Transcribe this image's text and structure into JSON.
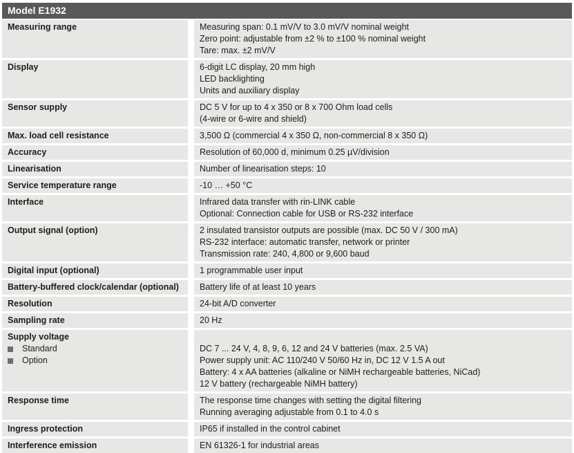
{
  "header": {
    "title": "Model E1932"
  },
  "colors": {
    "header_bg": "#59595b",
    "row_bg": "#e7e7e5",
    "text": "#1d1d1b",
    "bullet": "#6e6e70"
  },
  "table": {
    "rows": [
      {
        "label": "Measuring range",
        "values": [
          "Measuring span: 0.1 mV/V to 3.0 mV/V nominal weight",
          "Zero point: adjustable from ±2 % to ±100 % nominal weight",
          "Tare: max. ±2 mV/V"
        ]
      },
      {
        "label": "Display",
        "values": [
          "6-digit LC display, 20 mm high",
          "LED backlighting",
          "Units and auxiliary display"
        ]
      },
      {
        "label": "Sensor supply",
        "values": [
          "DC 5 V for up to 4 x 350 or 8 x 700 Ohm load cells",
          "(4-wire or 6-wire and shield)"
        ]
      },
      {
        "label": "Max. load cell resistance",
        "values": [
          "3,500 Ω (commercial 4 x 350 Ω, non-commercial 8 x 350 Ω)"
        ]
      },
      {
        "label": "Accuracy",
        "values": [
          "Resolution of 60,000 d, minimum 0.25 µV/division"
        ]
      },
      {
        "label": "Linearisation",
        "values": [
          "Number of linearisation steps: 10"
        ]
      },
      {
        "label": "Service temperature range",
        "values": [
          "-10 … +50 °C"
        ]
      },
      {
        "label": "Interface",
        "values": [
          "Infrared data transfer with rin-LINK cable",
          "Optional: Connection cable for USB or RS-232 interface"
        ]
      },
      {
        "label": "Output signal (option)",
        "values": [
          "2 insulated transistor outputs are possible (max. DC 50 V / 300 mA)",
          "RS-232 interface: automatic transfer, network or printer",
          "Transmission rate: 240, 4,800 or 9,600 baud"
        ]
      },
      {
        "label": "Digital input (optional)",
        "values": [
          "1 programmable user input"
        ]
      },
      {
        "label": "Battery-buffered clock/calendar (optional)",
        "values": [
          "Battery life of at least 10 years"
        ]
      },
      {
        "label": "Resolution",
        "values": [
          "24-bit A/D converter"
        ]
      },
      {
        "label": "Sampling rate",
        "values": [
          "20 Hz"
        ]
      },
      {
        "label": "Supply voltage",
        "sub_items": [
          "Standard",
          "Option"
        ],
        "value_top_offset_lines": 1,
        "values": [
          "DC 7 ... 24 V, 4, 8, 9, 6, 12 and 24 V batteries (max. 2.5 VA)",
          "Power supply unit: AC 110/240 V 50/60 Hz in, DC 12 V 1.5 A out",
          "Battery: 4 x AA batteries (alkaline or NiMH rechargeable batteries, NiCad)",
          "12 V battery (rechargeable NiMH battery)"
        ]
      },
      {
        "label": "Response time",
        "values": [
          "The response time changes with setting the digital filtering",
          "Running averaging adjustable from 0.1 to 4.0 s"
        ]
      },
      {
        "label": "Ingress protection",
        "values": [
          "IP65 if installed in the control cabinet"
        ]
      },
      {
        "label": "Interference emission",
        "values": [
          "EN 61326-1 for industrial areas"
        ]
      }
    ]
  }
}
